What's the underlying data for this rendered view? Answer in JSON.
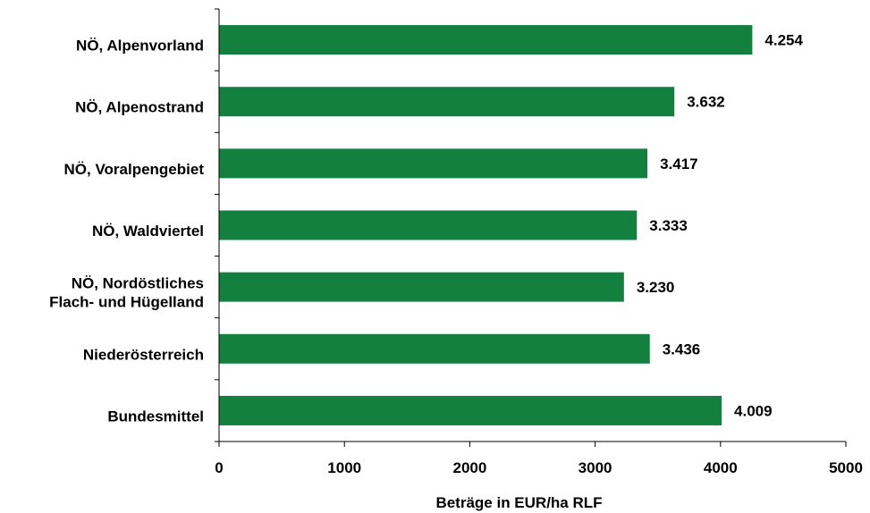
{
  "chart_data": {
    "type": "bar",
    "orientation": "horizontal",
    "categories": [
      "NÖ, Alpenvorland",
      "NÖ, Alpenostrand",
      "NÖ, Voralpengebiet",
      "NÖ, Waldviertel",
      [
        "NÖ, Nordöstliches",
        "Flach- und Hügelland"
      ],
      "Niederösterreich",
      "Bundesmittel"
    ],
    "values": [
      4254,
      3632,
      3417,
      3333,
      3230,
      3436,
      4009
    ],
    "value_labels": [
      "4.254",
      "3.632",
      "3.417",
      "3.333",
      "3.230",
      "3.436",
      "4.009"
    ],
    "xlabel": "Beträge in EUR/ha RLF",
    "xlim": [
      0,
      5000
    ],
    "xticks": [
      0,
      1000,
      2000,
      3000,
      4000,
      5000
    ],
    "bar_color": "#138040",
    "grid": false,
    "legend": "none"
  }
}
